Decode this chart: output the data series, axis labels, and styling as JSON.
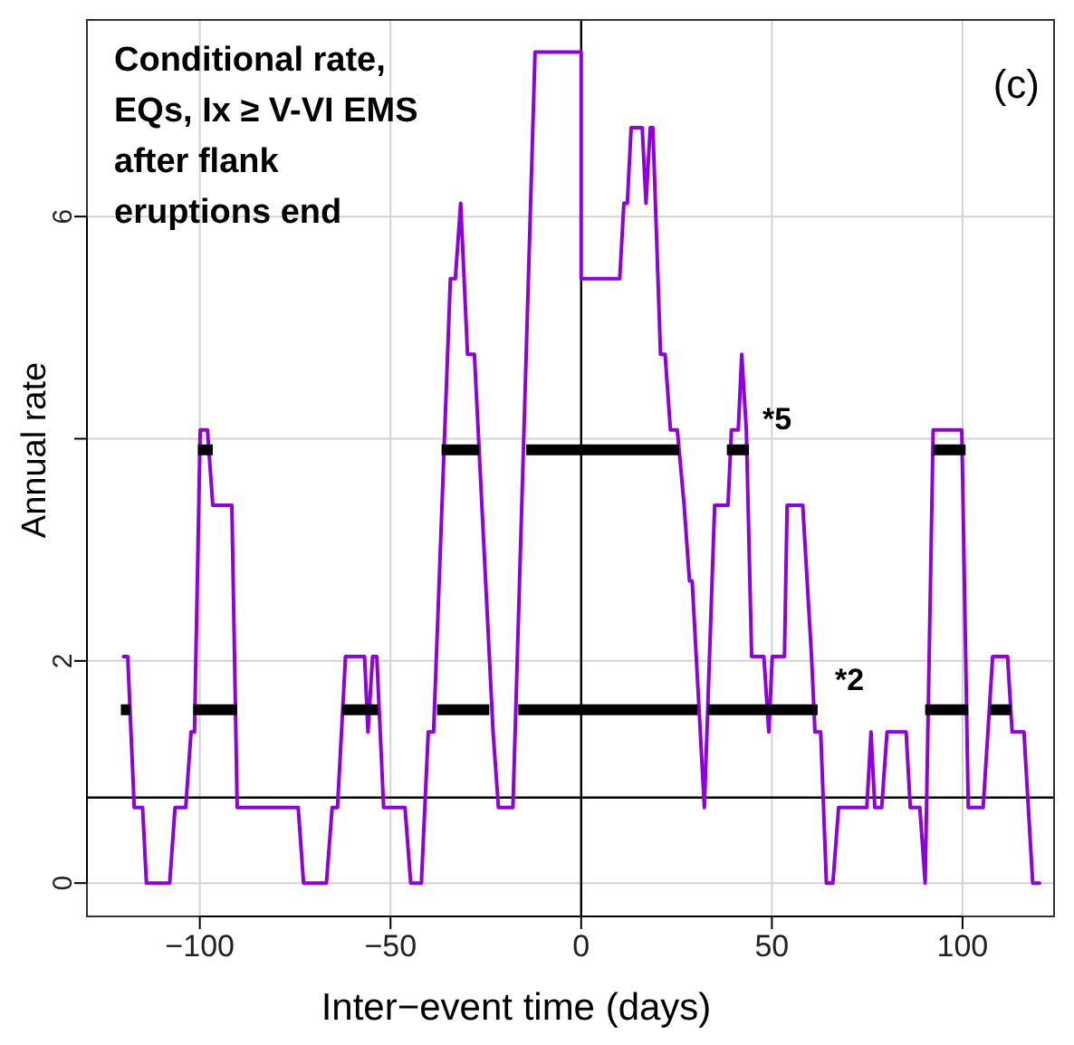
{
  "chart_data": {
    "type": "line",
    "title": "Conditional rate,\nEQs, Ix ≥ V-VI EMS\nafter flank\neruptions end",
    "xlabel": "Inter−event time (days)",
    "ylabel": "Annual rate",
    "xlim": [
      -129.6,
      124
    ],
    "ylim": [
      -0.3,
      7.77
    ],
    "xticks": [
      {
        "value": -100,
        "label": "−100"
      },
      {
        "value": -50,
        "label": "−50"
      },
      0,
      50,
      100
    ],
    "yticks": [
      0,
      2,
      {
        "value": 4,
        "label": null
      },
      6
    ],
    "grid": true,
    "series": [
      {
        "color": "#8f00e0",
        "x": [
          -120,
          -118.9,
          -117.2,
          -115,
          -114,
          -107.9,
          -106.5,
          -103.7,
          -102.3,
          -101.4,
          -99.9,
          -98,
          -96.6,
          -91.6,
          -90.2,
          -74.2,
          -72.8,
          -66.8,
          -65.3,
          -63.9,
          -61.8,
          -56.8,
          -55.9,
          -54.7,
          -53.6,
          -51.8,
          -46.2,
          -44.7,
          -41.9,
          -40.1,
          -38.7,
          -34.3,
          -33,
          -31.6,
          -29.8,
          -28,
          -23.1,
          -21.7,
          -17.9,
          -12.1,
          -0.5,
          0,
          0,
          10.1,
          11.2,
          12.1,
          13.1,
          16,
          17,
          18.1,
          18.8,
          20.8,
          22,
          23.4,
          25.2,
          27,
          28.4,
          29.1,
          32.3,
          35,
          38.5,
          39.4,
          41.2,
          42.1,
          43.3,
          44.7,
          47.9,
          49.2,
          50.1,
          53.3,
          54,
          58.1,
          60.4,
          61.3,
          62.8,
          64.3,
          66,
          67.5,
          74.9,
          76,
          77,
          78.8,
          80.2,
          85.2,
          86.3,
          88.8,
          90.2,
          92.3,
          99.8,
          101.5,
          105.4,
          107.9,
          111.8,
          113,
          116.1,
          118.4,
          120.2
        ],
        "values": [
          2.04,
          2.04,
          0.68,
          0.68,
          0,
          0,
          0.68,
          0.68,
          1.36,
          1.36,
          4.08,
          4.08,
          3.4,
          3.4,
          0.68,
          0.68,
          0,
          0,
          0.68,
          0.68,
          2.04,
          2.04,
          1.36,
          2.04,
          2.04,
          0.68,
          0.68,
          0,
          0,
          1.36,
          1.36,
          5.44,
          5.44,
          6.12,
          4.76,
          4.76,
          1.36,
          0.68,
          0.68,
          7.48,
          7.48,
          7.48,
          5.44,
          5.44,
          6.12,
          6.12,
          6.8,
          6.8,
          6.12,
          6.8,
          6.8,
          4.76,
          4.76,
          4.08,
          4.08,
          3.4,
          2.72,
          2.72,
          0.68,
          3.4,
          3.4,
          4.08,
          4.08,
          4.76,
          4.08,
          2.04,
          2.04,
          1.36,
          2.04,
          2.04,
          3.4,
          3.4,
          2.04,
          1.36,
          1.36,
          0,
          0,
          0.68,
          0.68,
          1.36,
          0.68,
          0.68,
          1.36,
          1.36,
          0.68,
          0.68,
          0,
          4.08,
          4.08,
          0.68,
          0.68,
          2.04,
          2.04,
          1.36,
          1.36,
          0,
          0
        ]
      },
      {
        "color": "#000000",
        "x": [
          -100.5,
          -96.6,
          null,
          -36.6,
          -26.8,
          null,
          -14.4,
          25.7,
          null,
          38.2,
          44,
          null,
          92.3,
          100.8,
          null,
          -120.7,
          -118.2,
          null,
          -101.7,
          -90.2,
          null,
          -62.7,
          -53.3,
          null,
          -37.8,
          -24.1,
          null,
          -16.5,
          30.5,
          null,
          33.2,
          62,
          null,
          90.2,
          101.5,
          null,
          107.2,
          112.7
        ],
        "values": [
          3.9,
          3.9,
          null,
          3.9,
          3.9,
          null,
          3.9,
          3.9,
          null,
          3.9,
          3.9,
          null,
          3.9,
          3.9,
          null,
          1.56,
          1.56,
          null,
          1.56,
          1.56,
          null,
          1.56,
          1.56,
          null,
          1.56,
          1.56,
          null,
          1.56,
          1.56,
          null,
          1.56,
          1.56,
          null,
          1.56,
          1.56,
          null,
          1.56,
          1.56
        ]
      }
    ],
    "ref_lines": [
      {
        "axis": "y",
        "value": 0.77,
        "color": "#000000"
      },
      {
        "axis": "x",
        "value": 0,
        "color": "#000000"
      }
    ],
    "annotations": [
      "*5",
      "*2",
      "(c)"
    ]
  }
}
